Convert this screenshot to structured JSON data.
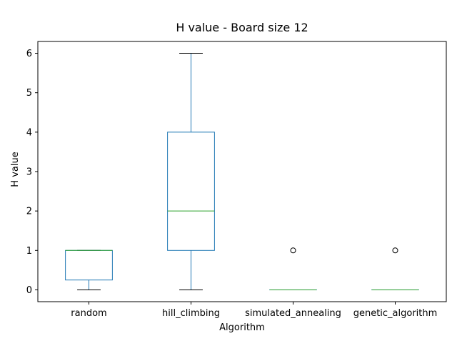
{
  "chart_data": {
    "type": "box",
    "title": "H value - Board size 12",
    "xlabel": "Algorithm",
    "ylabel": "H value",
    "ylim": [
      -0.3,
      6.3
    ],
    "yticks": [
      0,
      1,
      2,
      3,
      4,
      5,
      6
    ],
    "categories": [
      "random",
      "hill_climbing",
      "simulated_annealing",
      "genetic_algorithm"
    ],
    "boxes": [
      {
        "category": "random",
        "whisker_low": 0,
        "q1": 0.25,
        "median": 1,
        "q3": 1,
        "whisker_high": 1,
        "outliers": []
      },
      {
        "category": "hill_climbing",
        "whisker_low": 0,
        "q1": 1,
        "median": 2,
        "q3": 4,
        "whisker_high": 6,
        "outliers": []
      },
      {
        "category": "simulated_annealing",
        "whisker_low": 0,
        "q1": 0,
        "median": 0,
        "q3": 0,
        "whisker_high": 0,
        "outliers": [
          1
        ]
      },
      {
        "category": "genetic_algorithm",
        "whisker_low": 0,
        "q1": 0,
        "median": 0,
        "q3": 0,
        "whisker_high": 0,
        "outliers": [
          1
        ]
      }
    ],
    "grid": false,
    "legend": "none",
    "colors": {
      "box": "#1f77b4",
      "median": "#2ca02c",
      "whisker_cap": "#000000",
      "axes": "#000000"
    }
  }
}
